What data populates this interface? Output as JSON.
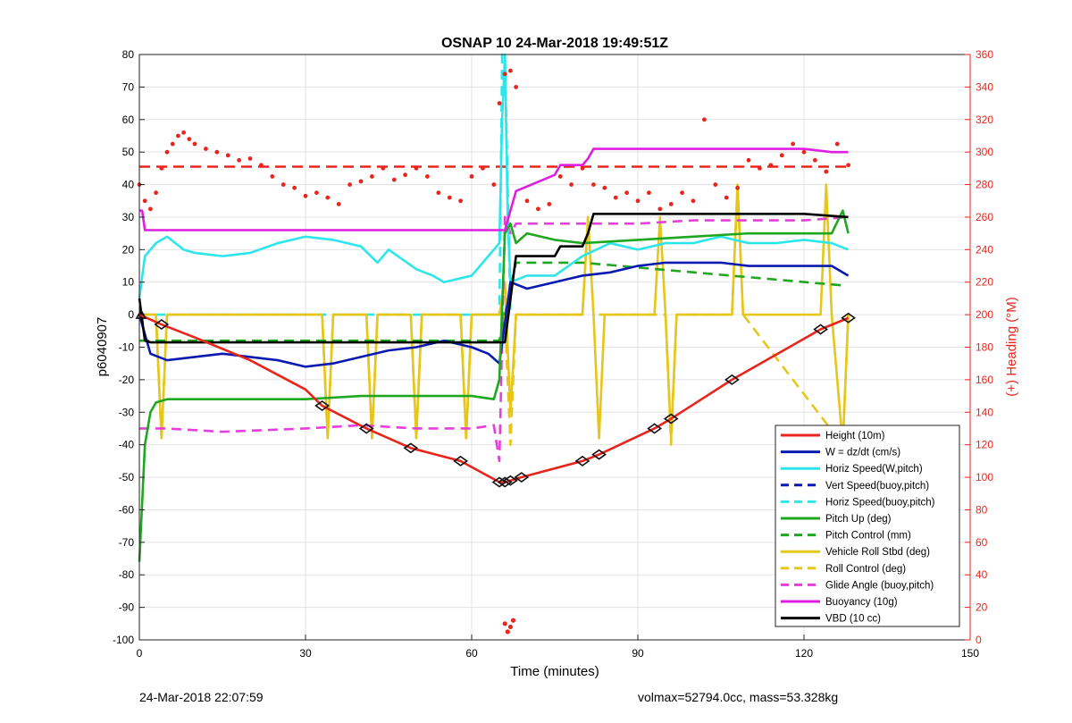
{
  "chart_data": {
    "type": "line",
    "title": "OSNAP 10 24-Mar-2018 19:49:51Z",
    "xlabel": "Time (minutes)",
    "ylabel": "p6040907",
    "y2label": "(+) Heading (°M)",
    "xlim": [
      0,
      150
    ],
    "ylim": [
      -100,
      80
    ],
    "y2lim": [
      0,
      360
    ],
    "xticks": [
      0,
      30,
      60,
      90,
      120,
      150
    ],
    "yticks": [
      -100,
      -90,
      -80,
      -70,
      -60,
      -50,
      -40,
      -30,
      -20,
      -10,
      0,
      10,
      20,
      30,
      40,
      50,
      60,
      70,
      80
    ],
    "y2ticks": [
      0,
      20,
      40,
      60,
      80,
      100,
      120,
      140,
      160,
      180,
      200,
      220,
      240,
      260,
      280,
      300,
      320,
      340,
      360
    ],
    "grid": true,
    "legend_position": "bottom-right",
    "colors": {
      "height": "#e8251c",
      "w": "#0a1ab0",
      "horiz": "#2ee6ea",
      "pitch": "#1fa81f",
      "roll": "#e6c61a",
      "glide": "#e43fd8",
      "buoyancy": "#e01ee0",
      "vbd": "#000000",
      "heading": "#e8251c"
    },
    "series": [
      {
        "name": "Height (10m)",
        "style": "solid",
        "color": "#e8251c",
        "marker": "diamond",
        "x": [
          0,
          4,
          10,
          20,
          30,
          33,
          41,
          49,
          58,
          65,
          66,
          67,
          69,
          80,
          83,
          93,
          96,
          107,
          123,
          128
        ],
        "y": [
          0,
          -3,
          -7,
          -14,
          -23,
          -28,
          -35,
          -41,
          -45,
          -51.5,
          -51.5,
          -51,
          -50,
          -45,
          -43,
          -35,
          -32,
          -20,
          -4.5,
          -1
        ]
      },
      {
        "name": "W = dz/dt (cm/s)",
        "style": "solid",
        "color": "#0a1ab0",
        "x": [
          0,
          2,
          5,
          10,
          15,
          20,
          25,
          30,
          35,
          40,
          45,
          50,
          55,
          60,
          63,
          65,
          67,
          70,
          75,
          80,
          85,
          90,
          95,
          100,
          105,
          110,
          115,
          120,
          125,
          128
        ],
        "y": [
          0,
          -12,
          -14,
          -13,
          -12,
          -13,
          -14,
          -16,
          -15,
          -13,
          -11,
          -10,
          -8,
          -10,
          -12,
          -15,
          10,
          8,
          10,
          12,
          13,
          15,
          16,
          16,
          16,
          15,
          15,
          15,
          15,
          12
        ]
      },
      {
        "name": "Horiz Speed(W,pitch)",
        "style": "solid",
        "color": "#2ee6ea",
        "x": [
          0,
          1,
          3,
          5,
          8,
          10,
          15,
          20,
          25,
          30,
          35,
          40,
          43,
          45,
          50,
          53,
          55,
          60,
          63,
          65,
          65.5,
          66,
          66.5,
          67,
          70,
          75,
          80,
          85,
          90,
          95,
          100,
          105,
          110,
          115,
          120,
          125,
          128
        ],
        "y": [
          5,
          18,
          22,
          24,
          20,
          19,
          18,
          19,
          22,
          24,
          23,
          21,
          16,
          20,
          14,
          12,
          10,
          12,
          18,
          22,
          60,
          80,
          30,
          10,
          12,
          12,
          18,
          22,
          20,
          22,
          22,
          24,
          22,
          22,
          23,
          22,
          20
        ]
      },
      {
        "name": "Vert Speed(buoy,pitch)",
        "style": "dashed",
        "color": "#0a1ab0",
        "x": [],
        "y": []
      },
      {
        "name": "Horiz Speed(buoy,pitch)",
        "style": "dashed",
        "color": "#2ee6ea",
        "x": [
          0,
          65,
          65.5,
          66,
          67
        ],
        "y": [
          0,
          0,
          80,
          80,
          0
        ]
      },
      {
        "name": "Pitch Up (deg)",
        "style": "solid",
        "color": "#1fa81f",
        "x": [
          0,
          1,
          2,
          3,
          5,
          10,
          20,
          30,
          40,
          50,
          60,
          64,
          65,
          66,
          67,
          68,
          70,
          75,
          80,
          90,
          100,
          110,
          120,
          125,
          127,
          128
        ],
        "y": [
          -76,
          -40,
          -30,
          -27,
          -26,
          -26,
          -26,
          -26,
          -25,
          -25,
          -25,
          -26,
          -20,
          25,
          28,
          22,
          25,
          23,
          22,
          23,
          24,
          25,
          25,
          25,
          32,
          25
        ]
      },
      {
        "name": "Pitch Control (mm)",
        "style": "dashed",
        "color": "#1fa81f",
        "x": [
          0,
          65,
          68,
          80,
          127
        ],
        "y": [
          -8,
          -8,
          16,
          16,
          9
        ]
      },
      {
        "name": "Vehicle Roll Stbd (deg)",
        "style": "solid",
        "color": "#e6c61a",
        "x": [
          0,
          3,
          4,
          5,
          33,
          34,
          35,
          41,
          42,
          43,
          49,
          50,
          51,
          58,
          59,
          60,
          65,
          66,
          67,
          68,
          70,
          80,
          81,
          82,
          83,
          84,
          93,
          94,
          95,
          96,
          97,
          107,
          108,
          109,
          123,
          124,
          125,
          127,
          128
        ],
        "y": [
          0,
          0,
          -38,
          0,
          0,
          -38,
          0,
          0,
          -38,
          0,
          0,
          -38,
          0,
          0,
          -38,
          0,
          0,
          10,
          -30,
          0,
          0,
          0,
          30,
          0,
          -38,
          0,
          0,
          30,
          0,
          -38,
          0,
          0,
          40,
          0,
          0,
          40,
          0,
          -40,
          0
        ]
      },
      {
        "name": "Roll Control (deg)",
        "style": "dashed",
        "color": "#e6c61a",
        "x": [
          0,
          3,
          4,
          5,
          33,
          34,
          35,
          41,
          42,
          43,
          49,
          50,
          51,
          58,
          59,
          60,
          65,
          66,
          67,
          68,
          70,
          80,
          81,
          82,
          95,
          96,
          97,
          107,
          108,
          109,
          127,
          128
        ],
        "y": [
          0,
          0,
          -38,
          0,
          0,
          -38,
          0,
          0,
          -38,
          0,
          0,
          -38,
          0,
          0,
          -38,
          0,
          0,
          0,
          -40,
          0,
          0,
          0,
          30,
          0,
          0,
          -40,
          0,
          0,
          40,
          0,
          -40,
          0
        ]
      },
      {
        "name": "Glide Angle (buoy,pitch)",
        "style": "dashed",
        "color": "#e43fd8",
        "x": [
          0,
          5,
          15,
          30,
          40,
          50,
          60,
          64,
          65,
          66,
          67,
          68,
          75,
          90,
          100,
          110,
          120,
          128
        ],
        "y": [
          -35,
          -35,
          -36,
          -35,
          -34,
          -35,
          -35,
          -34,
          -45,
          30,
          25,
          28,
          28,
          28,
          29,
          29,
          29,
          30
        ]
      },
      {
        "name": "Buoyancy (10g)",
        "style": "solid",
        "color": "#e01ee0",
        "x": [
          0,
          0.5,
          1,
          65,
          66,
          68,
          75,
          76,
          80,
          81,
          82,
          90,
          100,
          110,
          120,
          125,
          128
        ],
        "y": [
          32,
          32,
          26,
          26,
          26,
          38,
          43,
          46,
          46,
          48,
          51,
          51,
          51,
          51,
          51,
          50,
          50
        ]
      },
      {
        "name": "VBD (10 cc)",
        "style": "solid",
        "color": "#000000",
        "x": [
          0,
          1,
          2,
          65,
          66,
          68,
          75,
          76,
          80,
          81,
          82,
          90,
          100,
          110,
          120,
          128
        ],
        "y": [
          5,
          -8,
          -8.5,
          -8.5,
          -8.5,
          18,
          18,
          21,
          21,
          25,
          31,
          31,
          31,
          31,
          31,
          30
        ]
      }
    ],
    "heading_series": {
      "name": "(+) Heading (°M)",
      "axis": "right",
      "style": "dots",
      "color": "#e8251c",
      "x": [
        0,
        1,
        2,
        3,
        4,
        5,
        6,
        7,
        8,
        9,
        10,
        12,
        14,
        16,
        18,
        20,
        22,
        24,
        26,
        28,
        30,
        32,
        34,
        36,
        38,
        40,
        42,
        44,
        46,
        48,
        50,
        52,
        54,
        56,
        58,
        60,
        62,
        64,
        65,
        66,
        67,
        68,
        70,
        72,
        74,
        76,
        78,
        80,
        82,
        84,
        86,
        88,
        90,
        92,
        94,
        96,
        98,
        100,
        102,
        104,
        106,
        108,
        110,
        112,
        114,
        116,
        118,
        120,
        122,
        124,
        126,
        128
      ],
      "y": [
        280,
        270,
        265,
        275,
        290,
        300,
        305,
        310,
        312,
        308,
        305,
        302,
        300,
        298,
        295,
        296,
        292,
        285,
        280,
        278,
        273,
        275,
        272,
        268,
        280,
        282,
        285,
        290,
        283,
        286,
        290,
        285,
        275,
        272,
        270,
        285,
        290,
        280,
        330,
        348,
        350,
        340,
        270,
        265,
        268,
        285,
        280,
        290,
        280,
        278,
        272,
        275,
        270,
        275,
        265,
        268,
        275,
        270,
        320,
        280,
        272,
        278,
        295,
        290,
        292,
        298,
        305,
        300,
        295,
        288,
        305,
        292
      ]
    },
    "heading_reference": {
      "value": 291,
      "style": "dashed",
      "color": "#e8251c"
    },
    "heading_outliers": {
      "x": [
        66,
        66.5,
        67,
        67.5
      ],
      "y": [
        10,
        5,
        8,
        12
      ]
    }
  },
  "footer": {
    "left": "24-Mar-2018 22:07:59",
    "right": "volmax=52794.0cc, mass=53.328kg"
  }
}
